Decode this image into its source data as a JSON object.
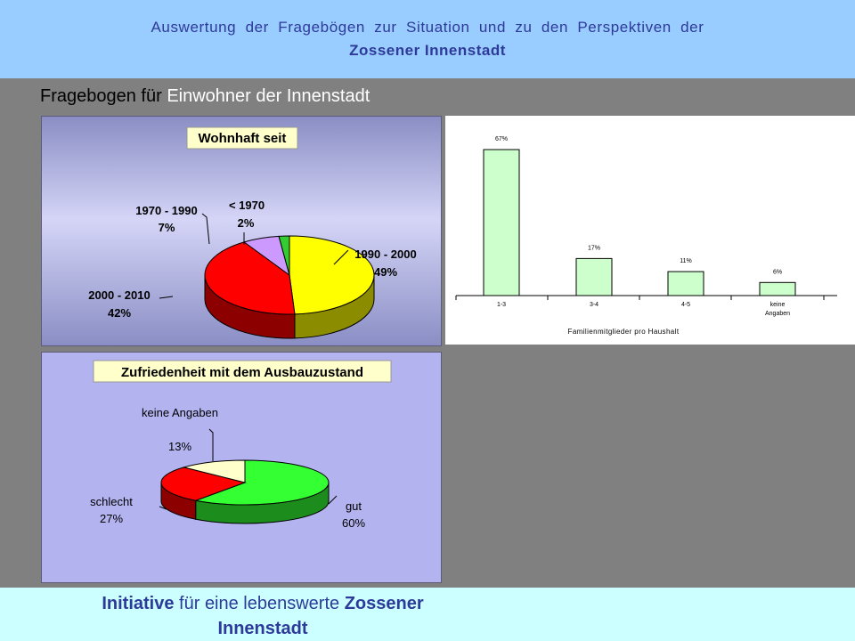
{
  "header": {
    "line1": "Auswertung der Fragebögen zur Situation und zu den Perspektiven der",
    "line2": "Zossener Innenstadt"
  },
  "subtitle": {
    "prefix": "Fragebogen für ",
    "highlight": "Einwohner der Innenstadt"
  },
  "footer": {
    "part1": "Initiative",
    "part2": " für eine lebenswerte ",
    "part3": "Zossener",
    "line2": "Innenstadt"
  },
  "colors": {
    "header_bg": "#99ccff",
    "footer_bg": "#ccffff",
    "slide_bg": "#808080",
    "title_text": "#2e3a99"
  },
  "chart_data": [
    {
      "type": "pie",
      "title": "Wohnhaft seit",
      "slices": [
        {
          "label": "1990 - 2000",
          "value": 49,
          "value_label": "49%",
          "color": "#ffff00"
        },
        {
          "label": "2000 - 2010",
          "value": 42,
          "value_label": "42%",
          "color": "#ff0000"
        },
        {
          "label": "1970 - 1990",
          "value": 7,
          "value_label": "7%",
          "color": "#cc99ff"
        },
        {
          "label": "< 1970",
          "value": 2,
          "value_label": "2%",
          "color": "#33cc33"
        }
      ]
    },
    {
      "type": "bar",
      "categories": [
        "1-3",
        "3-4",
        "4-5",
        "keine Angaben"
      ],
      "values": [
        67,
        17,
        11,
        6
      ],
      "value_labels": [
        "67%",
        "17%",
        "11%",
        "6%"
      ],
      "xlabel": "Familienmitglieder pro Haushalt",
      "ylim": [
        0,
        75
      ],
      "bar_color": "#ccffcc"
    },
    {
      "type": "pie",
      "title": "Zufriedenheit mit dem Ausbauzustand",
      "slices": [
        {
          "label": "gut",
          "value": 60,
          "value_label": "60%",
          "color": "#33ff33"
        },
        {
          "label": "schlecht",
          "value": 27,
          "value_label": "27%",
          "color": "#ff0000"
        },
        {
          "label": "keine Angaben",
          "value": 13,
          "value_label": "13%",
          "color": "#ffffcc"
        }
      ]
    }
  ]
}
